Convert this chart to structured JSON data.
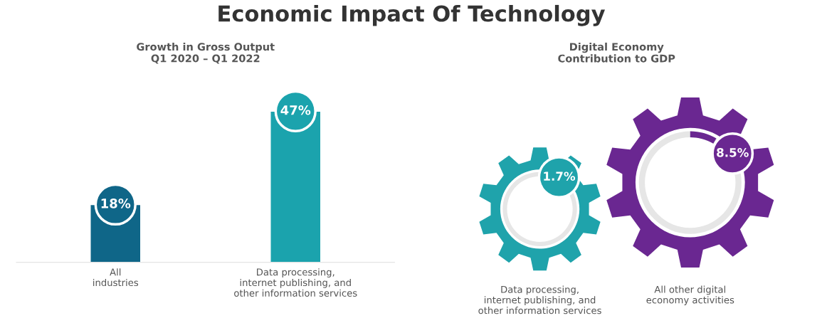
{
  "chart_data": [
    {
      "type": "bar",
      "title": "Economic Impact Of Technology",
      "subtitle": "Growth in Gross Output\nQ1 2020 – Q1 2022",
      "categories": [
        "All\nindustries",
        "Data processing,\ninternet publishing, and\nother information services"
      ],
      "values": [
        18,
        47
      ],
      "colors": [
        "#0f6688",
        "#1ba3ad"
      ],
      "value_labels": [
        "18%",
        "47%"
      ]
    },
    {
      "type": "other",
      "subtitle": "Digital Economy\nContribution to GDP",
      "categories": [
        "Data processing,\ninternet publishing, and\nother information services",
        "All other digital\neconomy activities"
      ],
      "values": [
        1.7,
        8.5
      ],
      "colors": [
        "#1fa3ab",
        "#6a2791"
      ],
      "value_labels": [
        "1.7%",
        "8.5%"
      ]
    }
  ]
}
